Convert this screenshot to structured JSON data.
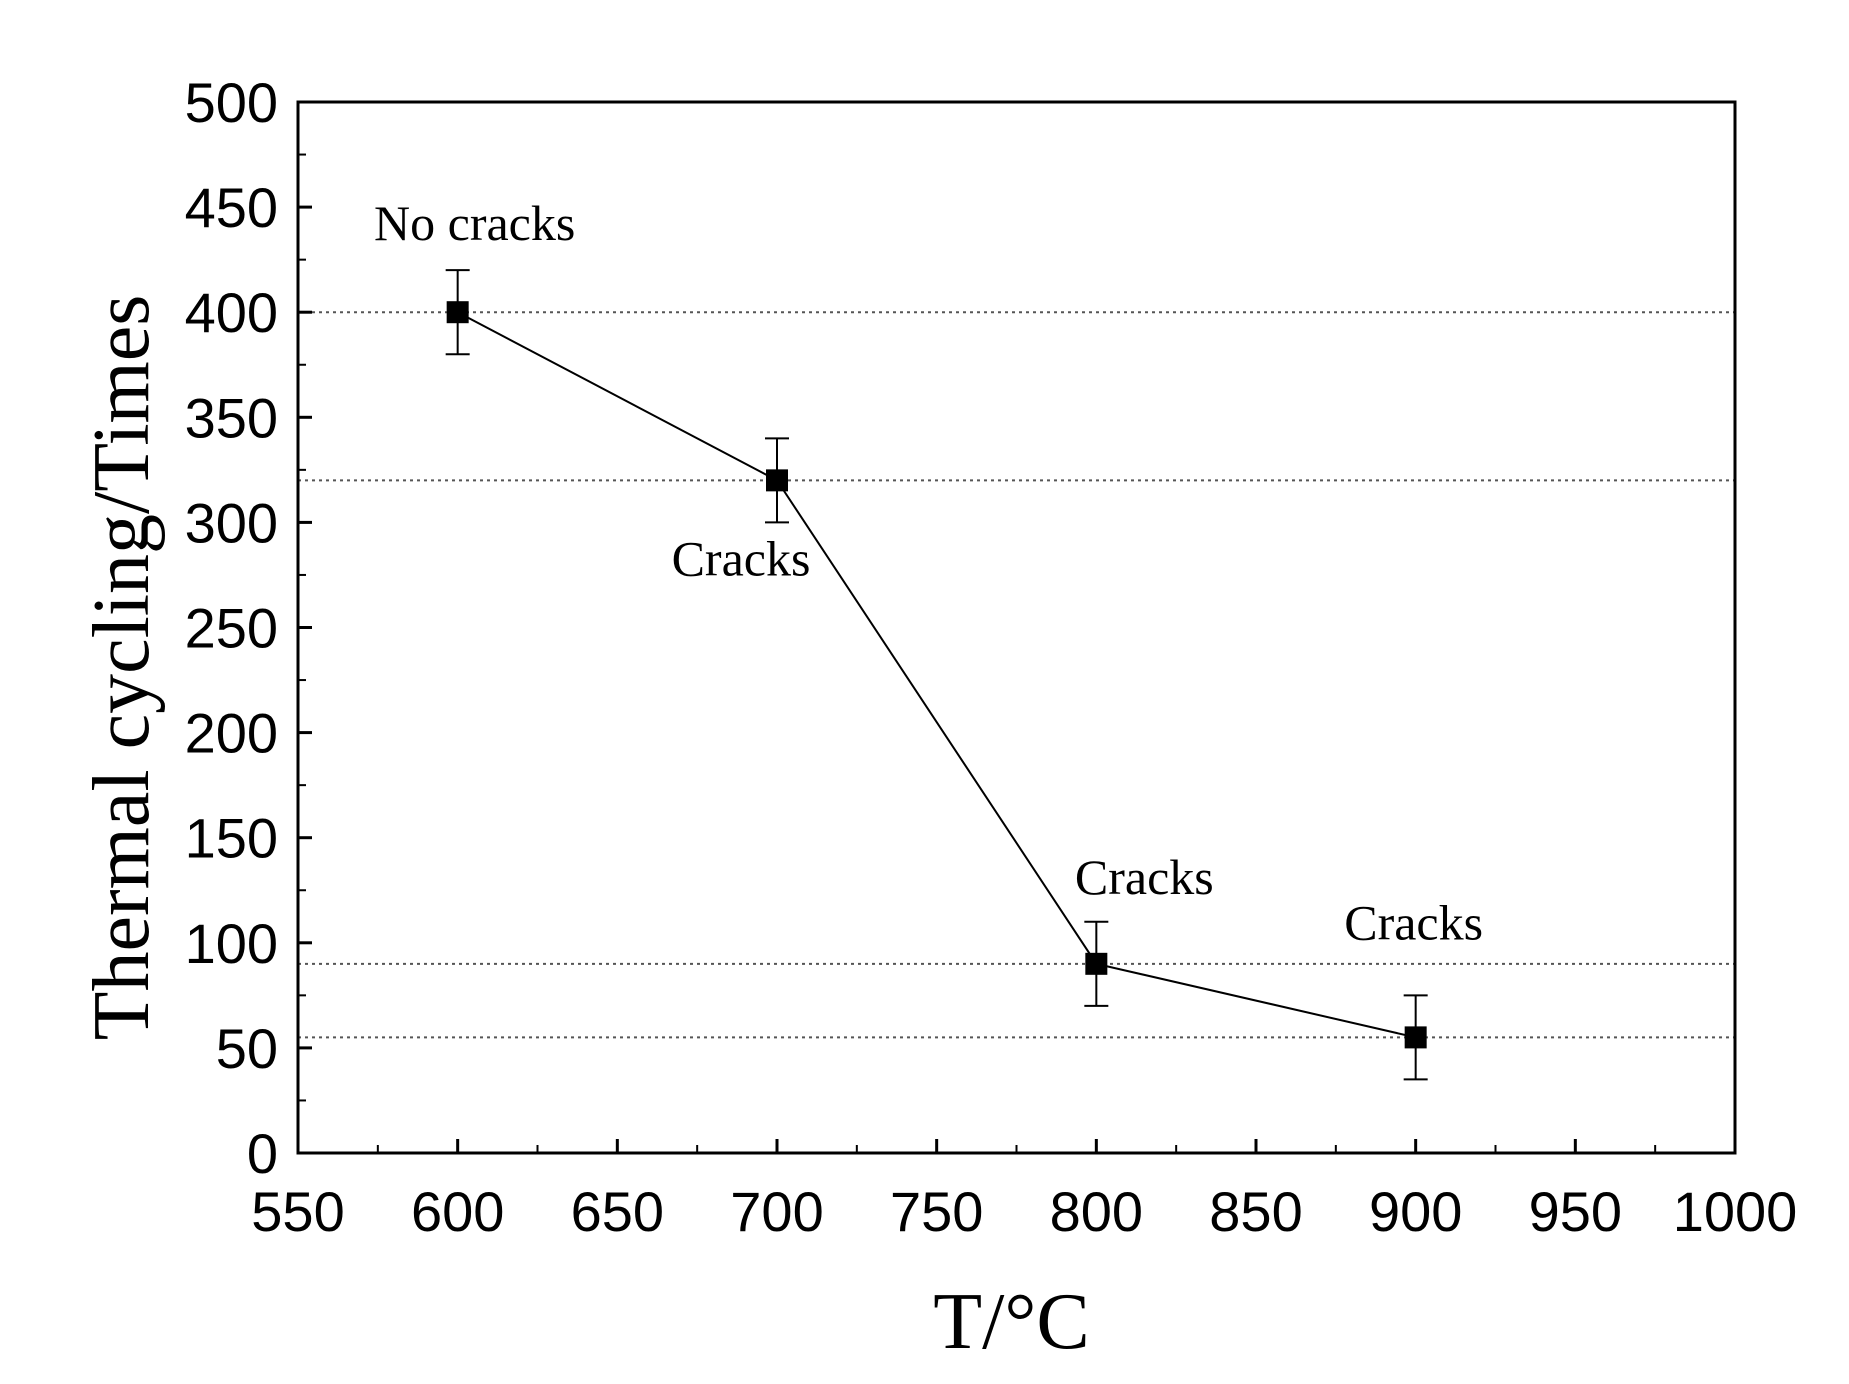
{
  "chart_data": {
    "type": "scatter",
    "xlabel": "T/°C",
    "ylabel": "Thermal cycling/Times",
    "xlim": [
      550,
      1000
    ],
    "ylim": [
      0,
      500
    ],
    "xticks": [
      550,
      600,
      650,
      700,
      750,
      800,
      850,
      900,
      950,
      1000
    ],
    "yticks": [
      0,
      50,
      100,
      150,
      200,
      250,
      300,
      350,
      400,
      450,
      500
    ],
    "x_minor_step": 25,
    "y_minor_step": 25,
    "grid": "horizontal dotted reference lines at data values",
    "series": [
      {
        "x": [
          600,
          700,
          800,
          900
        ],
        "y": [
          400,
          320,
          90,
          55
        ],
        "error": [
          20,
          20,
          20,
          20
        ],
        "marker": "square",
        "line": "solid"
      }
    ],
    "annotations": [
      {
        "text": "No cracks",
        "x": 600,
        "y": 400,
        "placement": "above"
      },
      {
        "text": "Cracks",
        "x": 700,
        "y": 320,
        "placement": "below"
      },
      {
        "text": "Cracks",
        "x": 800,
        "y": 90,
        "placement": "above"
      },
      {
        "text": "Cracks",
        "x": 900,
        "y": 55,
        "placement": "above"
      }
    ],
    "colors": {
      "line": "#000000",
      "marker": "#000000",
      "reference_line": "#555555"
    }
  }
}
